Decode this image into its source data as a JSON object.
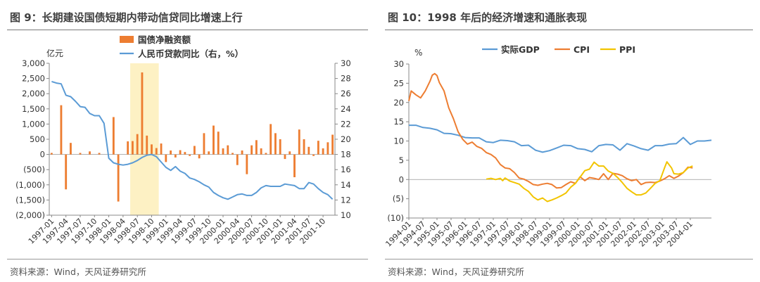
{
  "left": {
    "title": "图 9：长期建设国债短期内带动信贷同比增速上行",
    "source": "资料来源：Wind，天风证券研究所"
  },
  "right": {
    "title": "图 10：1998 年后的经济增速和通胀表现",
    "source": "资料来源：Wind，天风证券研究所"
  },
  "chart_data": [
    {
      "type": "bar",
      "title": "图 9：长期建设国债短期内带动信贷同比增速上行",
      "ylabel": "亿元",
      "ylabel_right": "",
      "ylim": [
        -2000,
        3000
      ],
      "ylim_right": [
        10,
        30
      ],
      "yticks_left": [
        3000,
        2500,
        2000,
        1500,
        1000,
        500,
        0,
        -500,
        -1000,
        -1500,
        -2000
      ],
      "yticks_left_labels": [
        "3,000",
        "2,500",
        "2,000",
        "1,500",
        "1,000",
        "500",
        "0",
        "(500)",
        "(1,000)",
        "(1,500)",
        "(2,000)"
      ],
      "yticks_right": [
        30,
        28,
        26,
        24,
        22,
        20,
        18,
        16,
        14,
        12,
        10
      ],
      "xtick_labels": [
        "1997-01",
        "1997-04",
        "1997-07",
        "1997-10",
        "1998-01",
        "1998-04",
        "1998-07",
        "1998-10",
        "1999-01",
        "1999-04",
        "1999-07",
        "1999-10",
        "2000-01",
        "2000-04",
        "2000-07",
        "2000-10",
        "2001-01",
        "2001-04",
        "2001-07",
        "2001-10"
      ],
      "legend": [
        "国债净融资额",
        "人民币贷款同比（右，%）"
      ],
      "legend_placement": "top",
      "highlight": {
        "from": "1998-06",
        "to": "1998-11",
        "color": "#fdf1c4"
      },
      "months": [
        "1997-01",
        "1997-02",
        "1997-03",
        "1997-04",
        "1997-05",
        "1997-06",
        "1997-07",
        "1997-08",
        "1997-09",
        "1997-10",
        "1997-11",
        "1997-12",
        "1998-01",
        "1998-02",
        "1998-03",
        "1998-04",
        "1998-05",
        "1998-06",
        "1998-07",
        "1998-08",
        "1998-09",
        "1998-10",
        "1998-11",
        "1998-12",
        "1999-01",
        "1999-02",
        "1999-03",
        "1999-04",
        "1999-05",
        "1999-06",
        "1999-07",
        "1999-08",
        "1999-09",
        "1999-10",
        "1999-11",
        "1999-12",
        "2000-01",
        "2000-02",
        "2000-03",
        "2000-04",
        "2000-05",
        "2000-06",
        "2000-07",
        "2000-08",
        "2000-09",
        "2000-10",
        "2000-11",
        "2000-12",
        "2001-01",
        "2001-02",
        "2001-03",
        "2001-04",
        "2001-05",
        "2001-06",
        "2001-07",
        "2001-08",
        "2001-09",
        "2001-10",
        "2001-11",
        "2001-12"
      ],
      "series": [
        {
          "name": "国债净融资额",
          "type": "bar",
          "color": "#ed7d31",
          "axis": "left",
          "values": [
            50,
            0,
            1620,
            -1150,
            380,
            0,
            50,
            0,
            100,
            0,
            50,
            0,
            0,
            1230,
            -1550,
            0,
            430,
            440,
            670,
            2700,
            620,
            330,
            210,
            360,
            -250,
            130,
            -100,
            140,
            80,
            -50,
            280,
            -130,
            700,
            100,
            950,
            750,
            200,
            300,
            50,
            -350,
            130,
            -650,
            300,
            470,
            200,
            50,
            1000,
            700,
            500,
            -150,
            100,
            -750,
            820,
            500,
            250,
            -50,
            450,
            200,
            400,
            650
          ]
        },
        {
          "name": "人民币贷款同比（右，%）",
          "type": "line",
          "color": "#5b9bd5",
          "axis": "right",
          "values": [
            27.6,
            27.4,
            27.3,
            25.8,
            25.6,
            25.0,
            24.3,
            24.2,
            23.4,
            23.1,
            23.1,
            22.1,
            17.5,
            16.9,
            16.7,
            16.6,
            16.7,
            16.9,
            17.2,
            17.6,
            17.9,
            18.0,
            17.7,
            17.0,
            16.3,
            15.9,
            16.4,
            15.8,
            15.5,
            14.9,
            14.7,
            14.4,
            14.0,
            13.7,
            13.0,
            12.6,
            12.3,
            12.1,
            12.4,
            12.7,
            12.8,
            12.6,
            12.6,
            13.0,
            13.6,
            13.9,
            13.8,
            13.8,
            13.8,
            14.1,
            14.0,
            13.9,
            13.5,
            13.5,
            14.3,
            14.1,
            13.5,
            13.0,
            12.7,
            12.1
          ]
        }
      ]
    },
    {
      "type": "line",
      "title": "图 10：1998 年后的经济增速和通胀表现",
      "ylabel": "%",
      "ylim": [
        -10,
        30
      ],
      "yticks": [
        30,
        25,
        20,
        15,
        10,
        5,
        0,
        -5,
        -10
      ],
      "ytick_labels": [
        "30",
        "25",
        "20",
        "15",
        "10",
        "5",
        "0",
        "(5)",
        "(10)"
      ],
      "xtick_labels": [
        "1994-01",
        "1994-07",
        "1995-01",
        "1995-07",
        "1996-01",
        "1996-07",
        "1997-01",
        "1997-07",
        "1998-01",
        "1998-07",
        "1999-01",
        "1999-07",
        "2000-01",
        "2000-07",
        "2001-01",
        "2001-07",
        "2002-01",
        "2002-07",
        "2003-01",
        "2003-07",
        "2004-01"
      ],
      "legend": [
        "实际GDP",
        "CPI",
        "PPI"
      ],
      "legend_placement": "top",
      "x_start": "1994-01",
      "x_end": "2004-01",
      "series": [
        {
          "name": "实际GDP",
          "color": "#5b9bd5",
          "points": [
            [
              "1994-01",
              14.1
            ],
            [
              "1994-04",
              14.1
            ],
            [
              "1994-07",
              13.5
            ],
            [
              "1994-10",
              13.3
            ],
            [
              "1995-01",
              12.9
            ],
            [
              "1995-04",
              12.0
            ],
            [
              "1995-07",
              11.9
            ],
            [
              "1995-10",
              11.5
            ],
            [
              "1996-01",
              10.9
            ],
            [
              "1996-04",
              10.8
            ],
            [
              "1996-07",
              10.8
            ],
            [
              "1996-10",
              9.8
            ],
            [
              "1997-01",
              9.6
            ],
            [
              "1997-04",
              10.2
            ],
            [
              "1997-07",
              10.1
            ],
            [
              "1997-10",
              9.8
            ],
            [
              "1998-01",
              8.8
            ],
            [
              "1998-04",
              8.9
            ],
            [
              "1998-07",
              7.6
            ],
            [
              "1998-10",
              7.1
            ],
            [
              "1999-01",
              7.5
            ],
            [
              "1999-04",
              8.2
            ],
            [
              "1999-07",
              8.9
            ],
            [
              "1999-10",
              8.8
            ],
            [
              "2000-01",
              8.0
            ],
            [
              "2000-04",
              7.8
            ],
            [
              "2000-07",
              7.2
            ],
            [
              "2000-10",
              8.8
            ],
            [
              "2001-01",
              9.1
            ],
            [
              "2001-04",
              9.0
            ],
            [
              "2001-07",
              7.6
            ],
            [
              "2001-10",
              9.3
            ],
            [
              "2002-01",
              8.7
            ],
            [
              "2002-04",
              8.0
            ],
            [
              "2002-07",
              7.6
            ],
            [
              "2002-10",
              8.8
            ],
            [
              "2003-01",
              8.8
            ],
            [
              "2003-04",
              9.2
            ],
            [
              "2003-07",
              9.3
            ],
            [
              "2003-10",
              10.9
            ],
            [
              "2004-01",
              9.1
            ],
            [
              "2004-04",
              10.0
            ],
            [
              "2004-07",
              10.0
            ],
            [
              "2004-10",
              10.2
            ]
          ]
        },
        {
          "name": "CPI",
          "color": "#ed7d31",
          "points": [
            [
              "1994-01",
              20.4
            ],
            [
              "1994-02",
              23.0
            ],
            [
              "1994-04",
              22.0
            ],
            [
              "1994-06",
              21.2
            ],
            [
              "1994-08",
              23.0
            ],
            [
              "1994-10",
              25.5
            ],
            [
              "1994-11",
              27.1
            ],
            [
              "1994-12",
              27.5
            ],
            [
              "1995-01",
              27.0
            ],
            [
              "1995-02",
              25.2
            ],
            [
              "1995-04",
              23.0
            ],
            [
              "1995-06",
              18.6
            ],
            [
              "1995-08",
              15.8
            ],
            [
              "1995-10",
              12.4
            ],
            [
              "1995-12",
              10.4
            ],
            [
              "1996-02",
              9.2
            ],
            [
              "1996-04",
              9.7
            ],
            [
              "1996-06",
              8.6
            ],
            [
              "1996-08",
              8.1
            ],
            [
              "1996-10",
              7.0
            ],
            [
              "1996-12",
              6.5
            ],
            [
              "1997-02",
              5.6
            ],
            [
              "1997-04",
              3.9
            ],
            [
              "1997-06",
              3.0
            ],
            [
              "1997-08",
              2.8
            ],
            [
              "1997-10",
              1.8
            ],
            [
              "1997-12",
              0.4
            ],
            [
              "1998-02",
              0.1
            ],
            [
              "1998-04",
              -0.5
            ],
            [
              "1998-06",
              -1.3
            ],
            [
              "1998-08",
              -1.5
            ],
            [
              "1998-10",
              -1.2
            ],
            [
              "1998-12",
              -1.0
            ],
            [
              "1999-02",
              -1.3
            ],
            [
              "1999-04",
              -2.2
            ],
            [
              "1999-06",
              -2.1
            ],
            [
              "1999-08",
              -1.3
            ],
            [
              "1999-10",
              -0.6
            ],
            [
              "1999-12",
              -1.0
            ],
            [
              "2000-02",
              0.7
            ],
            [
              "2000-04",
              -0.3
            ],
            [
              "2000-06",
              0.5
            ],
            [
              "2000-08",
              0.3
            ],
            [
              "2000-10",
              0.0
            ],
            [
              "2000-12",
              1.5
            ],
            [
              "2001-02",
              0.0
            ],
            [
              "2001-04",
              1.6
            ],
            [
              "2001-06",
              1.4
            ],
            [
              "2001-08",
              1.0
            ],
            [
              "2001-10",
              0.2
            ],
            [
              "2001-12",
              -0.3
            ],
            [
              "2002-02",
              0.0
            ],
            [
              "2002-04",
              -1.3
            ],
            [
              "2002-06",
              -0.8
            ],
            [
              "2002-08",
              -0.7
            ],
            [
              "2002-10",
              -0.8
            ],
            [
              "2002-12",
              -0.4
            ],
            [
              "2003-02",
              0.2
            ],
            [
              "2003-04",
              1.0
            ],
            [
              "2003-06",
              0.3
            ],
            [
              "2003-08",
              0.9
            ],
            [
              "2003-10",
              1.8
            ],
            [
              "2003-12",
              3.2
            ],
            [
              "2004-02",
              3.0
            ]
          ]
        },
        {
          "name": "PPI",
          "color": "#f2c400",
          "points": [
            [
              "1996-10",
              0.1
            ],
            [
              "1996-12",
              0.3
            ],
            [
              "1997-02",
              0.0
            ],
            [
              "1997-04",
              0.3
            ],
            [
              "1997-05",
              -0.3
            ],
            [
              "1997-06",
              0.4
            ],
            [
              "1997-08",
              -0.4
            ],
            [
              "1997-10",
              -0.8
            ],
            [
              "1997-12",
              -1.2
            ],
            [
              "1998-02",
              -2.3
            ],
            [
              "1998-04",
              -3.1
            ],
            [
              "1998-06",
              -4.5
            ],
            [
              "1998-08",
              -5.3
            ],
            [
              "1998-10",
              -4.8
            ],
            [
              "1998-12",
              -5.7
            ],
            [
              "1999-02",
              -5.3
            ],
            [
              "1999-04",
              -4.8
            ],
            [
              "1999-06",
              -4.2
            ],
            [
              "1999-08",
              -3.5
            ],
            [
              "1999-10",
              -2.0
            ],
            [
              "1999-12",
              -1.0
            ],
            [
              "2000-02",
              0.6
            ],
            [
              "2000-04",
              2.3
            ],
            [
              "2000-06",
              2.7
            ],
            [
              "2000-08",
              4.5
            ],
            [
              "2000-10",
              3.5
            ],
            [
              "2000-12",
              3.5
            ],
            [
              "2001-02",
              2.2
            ],
            [
              "2001-04",
              1.6
            ],
            [
              "2001-06",
              0.5
            ],
            [
              "2001-08",
              -0.8
            ],
            [
              "2001-10",
              -2.3
            ],
            [
              "2001-12",
              -3.2
            ],
            [
              "2002-02",
              -4.0
            ],
            [
              "2002-04",
              -4.0
            ],
            [
              "2002-06",
              -3.5
            ],
            [
              "2002-08",
              -2.3
            ],
            [
              "2002-10",
              -1.0
            ],
            [
              "2002-12",
              -0.3
            ],
            [
              "2003-02",
              3.0
            ],
            [
              "2003-03",
              4.6
            ],
            [
              "2003-05",
              3.0
            ],
            [
              "2003-06",
              1.5
            ],
            [
              "2003-08",
              1.4
            ],
            [
              "2003-10",
              1.8
            ],
            [
              "2003-12",
              3.0
            ],
            [
              "2004-02",
              3.5
            ]
          ]
        }
      ]
    }
  ]
}
